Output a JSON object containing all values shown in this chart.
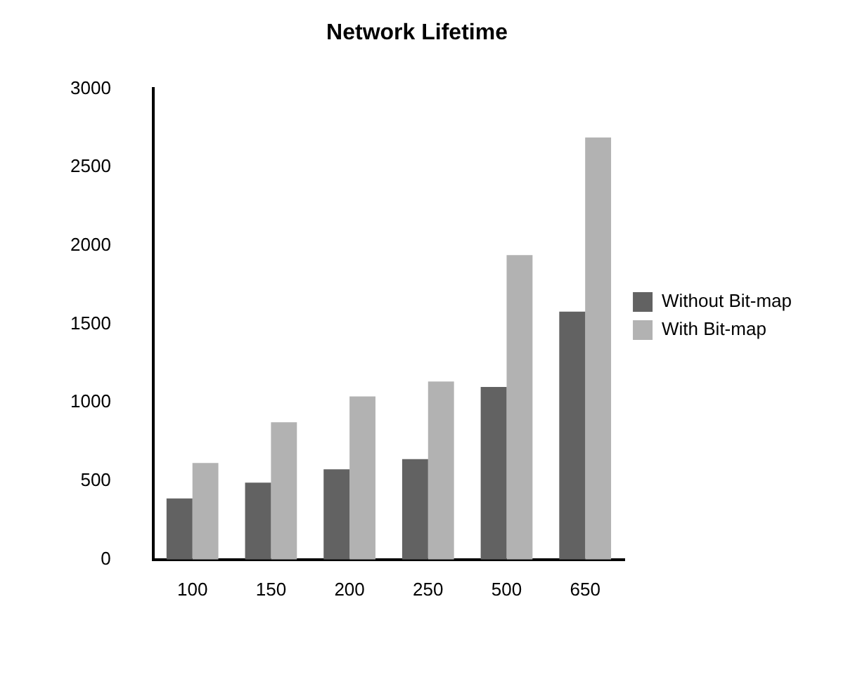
{
  "chart_data": {
    "type": "bar",
    "title": "Network Lifetime",
    "categories": [
      "100",
      "150",
      "200",
      "250",
      "500",
      "650"
    ],
    "series": [
      {
        "name": "Without Bit-map",
        "color": "#626262",
        "values": [
          390,
          490,
          575,
          640,
          1100,
          1580
        ]
      },
      {
        "name": "With Bit-map",
        "color": "#b2b2b2",
        "values": [
          615,
          875,
          1040,
          1135,
          1940,
          2690
        ]
      }
    ],
    "ylim": [
      0,
      3000
    ],
    "yticks": [
      0,
      500,
      1000,
      1500,
      2000,
      2500,
      3000
    ],
    "grid": false,
    "legend": "right"
  }
}
